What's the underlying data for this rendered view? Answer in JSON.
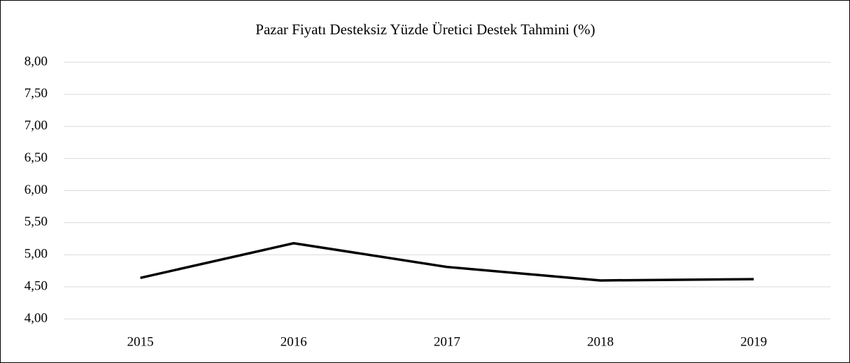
{
  "chart_data": {
    "type": "line",
    "title": "Pazar Fiyatı Desteksiz Yüzde Üretici Destek Tahmini (%)",
    "categories": [
      "2015",
      "2016",
      "2017",
      "2018",
      "2019"
    ],
    "series": [
      {
        "name": "Pazar Fiyatı Desteksiz Yüzde Üretici Destek Tahmini (%)",
        "color": "#000000",
        "values": [
          4.64,
          5.18,
          4.81,
          4.6,
          4.62
        ]
      }
    ],
    "ylim": [
      4,
      8
    ],
    "yticks": [
      {
        "value": 4,
        "label": "4,00"
      },
      {
        "value": 4.5,
        "label": "4,50"
      },
      {
        "value": 5,
        "label": "5,00"
      },
      {
        "value": 5.5,
        "label": "5,50"
      },
      {
        "value": 6,
        "label": "6,00"
      },
      {
        "value": 6.5,
        "label": "6,50"
      },
      {
        "value": 7,
        "label": "7,00"
      },
      {
        "value": 7.5,
        "label": "7,50"
      },
      {
        "value": 8,
        "label": "8,00"
      }
    ],
    "grid": true
  }
}
